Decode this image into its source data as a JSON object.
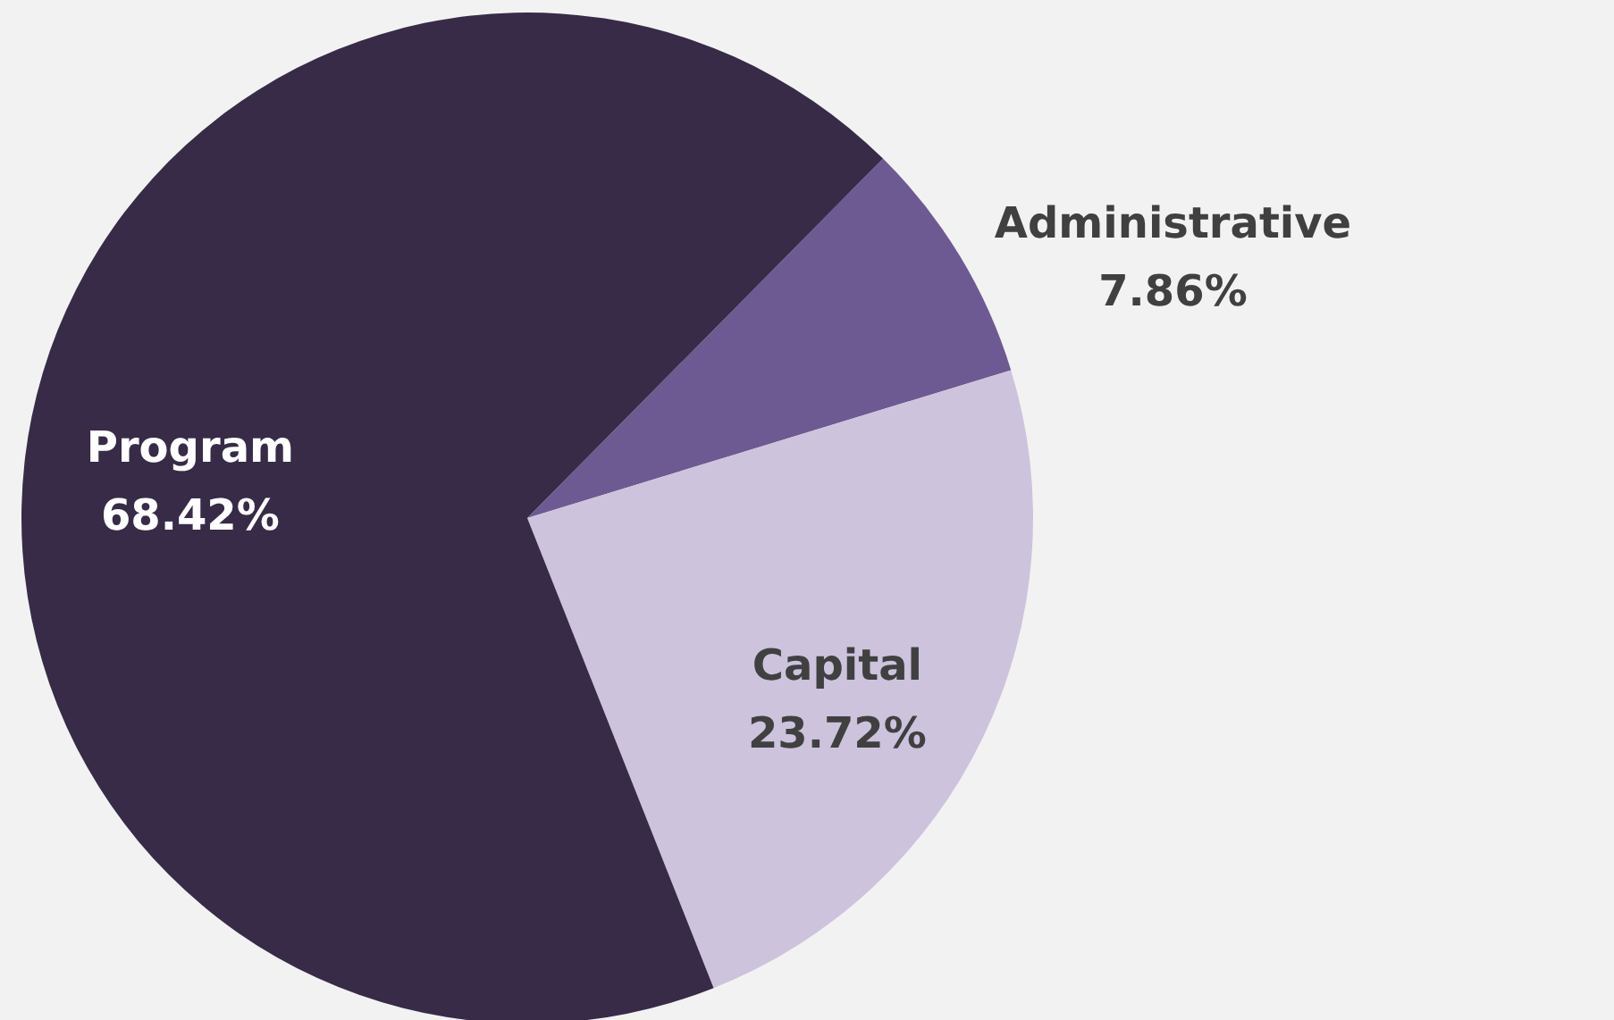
{
  "chart_data": {
    "type": "pie",
    "categories": [
      "Administrative",
      "Capital",
      "Program"
    ],
    "values": [
      7.86,
      23.72,
      68.42
    ],
    "value_labels": [
      "7.86%",
      "23.72%",
      "68.42%"
    ],
    "colors": [
      "#6e5a92",
      "#cdc3dd",
      "#372b47"
    ]
  }
}
